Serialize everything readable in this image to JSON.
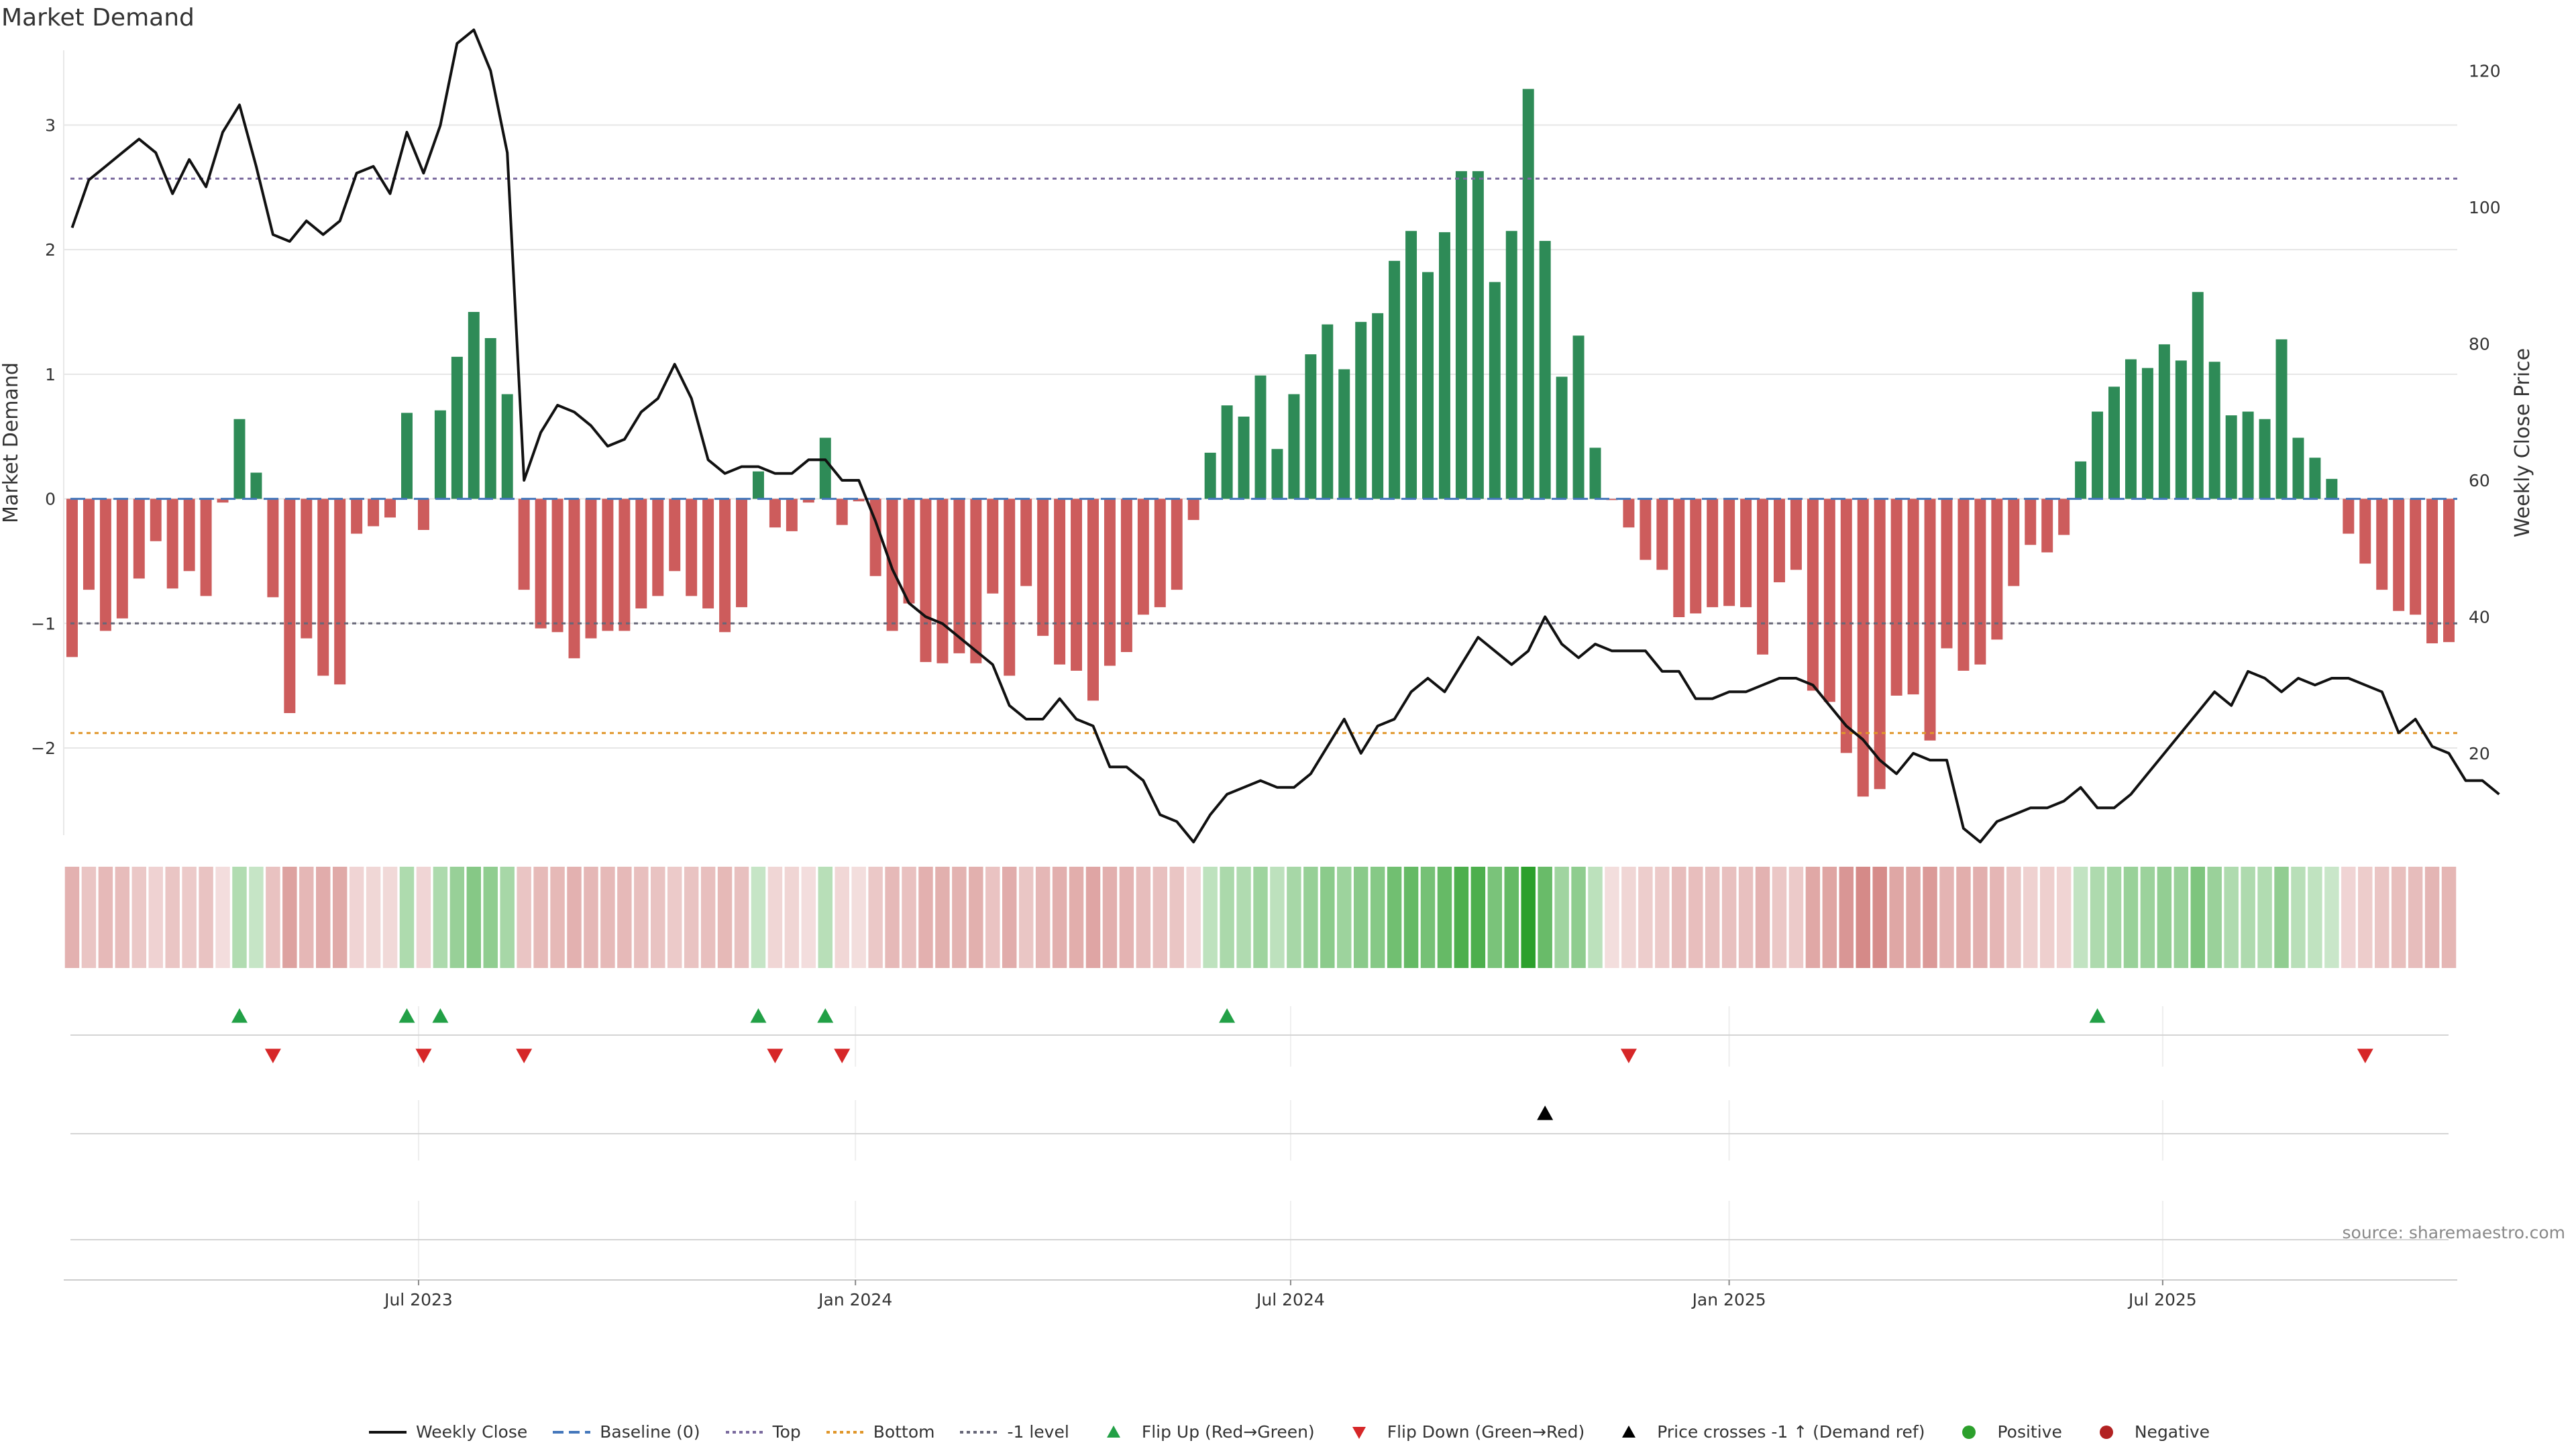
{
  "title": "Market Demand",
  "source": "source: sharemaestro.com",
  "chart_data": {
    "type": "bar",
    "title": "Market Demand",
    "ylabel": "Market Demand",
    "y2label": "Weekly Close Price",
    "ylim": [
      -2.7,
      3.6
    ],
    "y2lim": [
      8,
      123
    ],
    "yticks": [
      3,
      2,
      1,
      0,
      -1,
      -2
    ],
    "y2ticks": [
      120,
      100,
      80,
      60,
      40,
      20
    ],
    "ytick_labels": [
      "3",
      "2",
      "1",
      "0",
      "−1",
      "−2"
    ],
    "xtick_labels": [
      "Jul 2023",
      "Jan 2024",
      "Jul 2024",
      "Jan 2025",
      "Jul 2025"
    ],
    "xtick_week_index": [
      21.2,
      47.3,
      73.3,
      99.5,
      125.4
    ],
    "reference_lines": {
      "baseline": 0,
      "top": 2.57,
      "bottom": -1.88,
      "minus1": -1.0
    },
    "demand": [
      -1.27,
      -0.73,
      -1.06,
      -0.96,
      -0.64,
      -0.34,
      -0.72,
      -0.58,
      -0.78,
      -0.03,
      0.64,
      0.21,
      -0.79,
      -1.72,
      -1.12,
      -1.42,
      -1.49,
      -0.28,
      -0.22,
      -0.15,
      0.69,
      -0.25,
      0.71,
      1.14,
      1.5,
      1.29,
      0.84,
      -0.73,
      -1.04,
      -1.07,
      -1.28,
      -1.12,
      -1.06,
      -1.06,
      -0.88,
      -0.78,
      -0.58,
      -0.78,
      -0.88,
      -1.07,
      -0.87,
      0.22,
      -0.23,
      -0.26,
      -0.03,
      0.49,
      -0.21,
      -0.02,
      -0.62,
      -1.06,
      -0.84,
      -1.31,
      -1.32,
      -1.24,
      -1.32,
      -0.76,
      -1.42,
      -0.7,
      -1.1,
      -1.33,
      -1.38,
      -1.62,
      -1.34,
      -1.23,
      -0.93,
      -0.87,
      -0.73,
      -0.17,
      0.37,
      0.75,
      0.66,
      0.99,
      0.4,
      0.84,
      1.16,
      1.4,
      1.04,
      1.42,
      1.49,
      1.91,
      2.15,
      1.82,
      2.14,
      2.63,
      2.63,
      1.74,
      2.15,
      3.29,
      2.07,
      0.98,
      1.31,
      0.41,
      -0.01,
      -0.23,
      -0.49,
      -0.57,
      -0.95,
      -0.92,
      -0.87,
      -0.86,
      -0.87,
      -1.25,
      -0.67,
      -0.57,
      -1.54,
      -1.63,
      -2.04,
      -2.39,
      -2.33,
      -1.58,
      -1.57,
      -1.94,
      -1.2,
      -1.38,
      -1.33,
      -1.13,
      -0.7,
      -0.37,
      -0.43,
      -0.29,
      0.3,
      0.7,
      0.9,
      1.12,
      1.05,
      1.24,
      1.11,
      1.66,
      1.1,
      0.67,
      0.7,
      0.64,
      1.28,
      0.49,
      0.33,
      0.16,
      -0.28,
      -0.52,
      -0.73,
      -0.9,
      -0.93,
      -1.16,
      -1.15
    ],
    "weekly_close": [
      97,
      104,
      106,
      108,
      110,
      108,
      102,
      107,
      103,
      111,
      115,
      106,
      96,
      95,
      98,
      96,
      98,
      105,
      106,
      102,
      111,
      105,
      112,
      124,
      126,
      120,
      108,
      60,
      67,
      71,
      70,
      68,
      65,
      66,
      70,
      72,
      77,
      72,
      63,
      61,
      62,
      62,
      61,
      61,
      63,
      63,
      60,
      60,
      54,
      47,
      42,
      40,
      39,
      37,
      35,
      33,
      27,
      25,
      25,
      28,
      25,
      24,
      18,
      18,
      16,
      11,
      10,
      7,
      11,
      14,
      15,
      16,
      15,
      15,
      17,
      21,
      25,
      20,
      24,
      25,
      29,
      31,
      29,
      33,
      37,
      35,
      33,
      35,
      40,
      36,
      34,
      36,
      35,
      35,
      35,
      32,
      32,
      28,
      28,
      29,
      29,
      30,
      31,
      31,
      30,
      27,
      24,
      22,
      19,
      17,
      20,
      19,
      19,
      9,
      7,
      10,
      11,
      12,
      12,
      13,
      15,
      12,
      12,
      14,
      17,
      20,
      23,
      26,
      29,
      27,
      32,
      31,
      29,
      31,
      30,
      31,
      31,
      30,
      29,
      23,
      25,
      21,
      20,
      16,
      16,
      14
    ],
    "flip_up_weeks": [
      10,
      20,
      22,
      41,
      45,
      69,
      121
    ],
    "flip_down_weeks": [
      12,
      21,
      27,
      42,
      46,
      93,
      137
    ],
    "price_cross_weeks": [
      88
    ],
    "legend": [
      "Weekly Close",
      "Baseline (0)",
      "Top",
      "Bottom",
      "-1 level",
      "Flip Up (Red→Green)",
      "Flip Down (Green→Red)",
      "Price crosses -1 ↑ (Demand ref)",
      "Positive",
      "Negative"
    ],
    "colors": {
      "positive": "#2e8b57",
      "negative": "#cd5c5c",
      "line": "#111111",
      "baseline": "#4477bb",
      "top": "#7a6a9e",
      "bottom": "#e0962a",
      "minus1": "#666677",
      "flip_up": "#22a046",
      "flip_down": "#d62728",
      "cross": "#000000",
      "legend_positive": "#2ca02c",
      "legend_negative": "#b22222",
      "grid": "#e6e6e6"
    }
  }
}
